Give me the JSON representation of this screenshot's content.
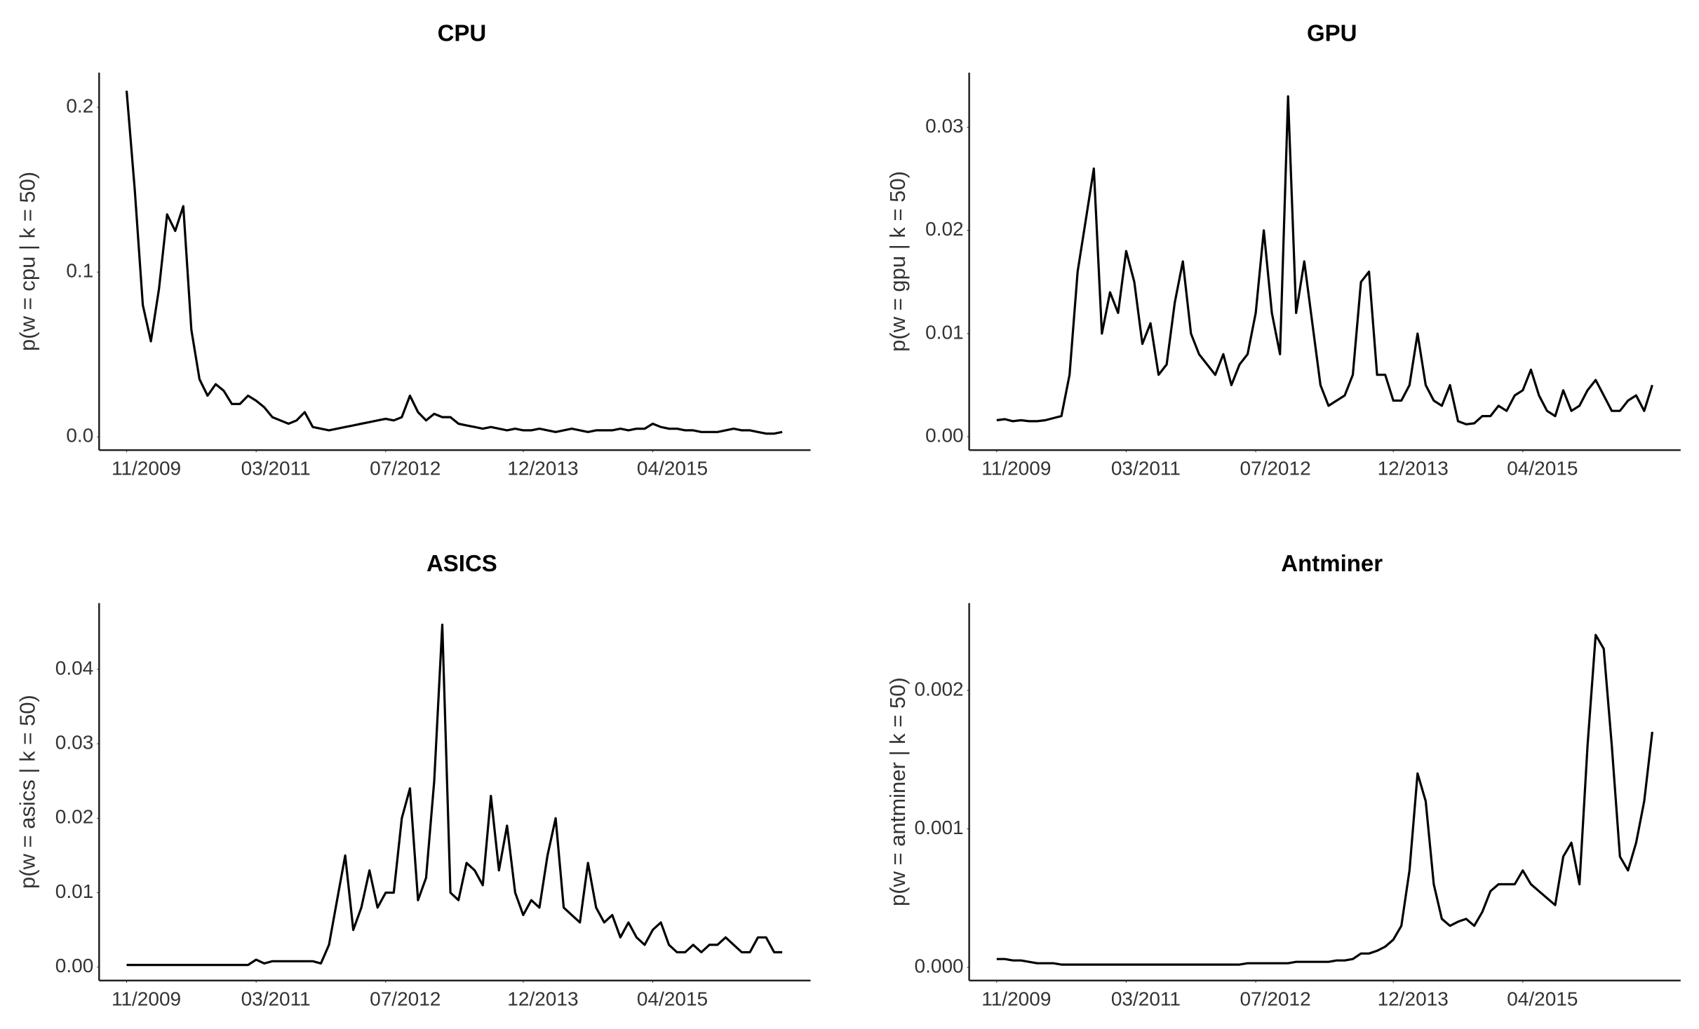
{
  "chart_data": [
    {
      "type": "line",
      "title": "CPU",
      "y_label": "p(w = cpu | k = 50)",
      "color": "#000000",
      "grid": false,
      "x": [
        "11/2009",
        "12/2009",
        "01/2010",
        "02/2010",
        "03/2010",
        "04/2010",
        "05/2010",
        "06/2010",
        "07/2010",
        "08/2010",
        "09/2010",
        "10/2010",
        "11/2010",
        "12/2010",
        "01/2011",
        "02/2011",
        "03/2011",
        "04/2011",
        "05/2011",
        "06/2011",
        "07/2011",
        "08/2011",
        "09/2011",
        "10/2011",
        "11/2011",
        "12/2011",
        "01/2012",
        "02/2012",
        "03/2012",
        "04/2012",
        "05/2012",
        "06/2012",
        "07/2012",
        "08/2012",
        "09/2012",
        "10/2012",
        "11/2012",
        "12/2012",
        "01/2013",
        "02/2013",
        "03/2013",
        "04/2013",
        "05/2013",
        "06/2013",
        "07/2013",
        "08/2013",
        "09/2013",
        "10/2013",
        "11/2013",
        "12/2013",
        "01/2014",
        "02/2014",
        "03/2014",
        "04/2014",
        "05/2014",
        "06/2014",
        "07/2014",
        "08/2014",
        "09/2014",
        "10/2014",
        "11/2014",
        "12/2014",
        "01/2015",
        "02/2015",
        "03/2015",
        "04/2015",
        "05/2015",
        "06/2015",
        "07/2015",
        "08/2015",
        "09/2015",
        "10/2015",
        "11/2015",
        "12/2015",
        "01/2016",
        "02/2016",
        "03/2016",
        "04/2016",
        "05/2016",
        "06/2016",
        "07/2016",
        "08/2016"
      ],
      "values": [
        0.21,
        0.15,
        0.08,
        0.058,
        0.09,
        0.135,
        0.125,
        0.14,
        0.065,
        0.035,
        0.025,
        0.032,
        0.028,
        0.02,
        0.02,
        0.025,
        0.022,
        0.018,
        0.012,
        0.01,
        0.008,
        0.01,
        0.015,
        0.006,
        0.005,
        0.004,
        0.005,
        0.006,
        0.007,
        0.008,
        0.009,
        0.01,
        0.011,
        0.01,
        0.012,
        0.025,
        0.015,
        0.01,
        0.014,
        0.012,
        0.012,
        0.008,
        0.007,
        0.006,
        0.005,
        0.006,
        0.005,
        0.004,
        0.005,
        0.004,
        0.004,
        0.005,
        0.004,
        0.003,
        0.004,
        0.005,
        0.004,
        0.003,
        0.004,
        0.004,
        0.004,
        0.005,
        0.004,
        0.005,
        0.005,
        0.008,
        0.006,
        0.005,
        0.005,
        0.004,
        0.004,
        0.003,
        0.003,
        0.003,
        0.004,
        0.005,
        0.004,
        0.004,
        0.003,
        0.002,
        0.002,
        0.003
      ],
      "xticks": [
        "11/2009",
        "03/2011",
        "07/2012",
        "12/2013",
        "04/2015"
      ],
      "ylim": [
        -0.008,
        0.221
      ],
      "yticks": [
        {
          "value": 0,
          "label": "0.0"
        },
        0.1,
        0.2
      ]
    },
    {
      "type": "line",
      "title": "GPU",
      "y_label": "p(w = gpu | k = 50)",
      "color": "#000000",
      "grid": false,
      "x": [
        "11/2009",
        "12/2009",
        "01/2010",
        "02/2010",
        "03/2010",
        "04/2010",
        "05/2010",
        "06/2010",
        "07/2010",
        "08/2010",
        "09/2010",
        "10/2010",
        "11/2010",
        "12/2010",
        "01/2011",
        "02/2011",
        "03/2011",
        "04/2011",
        "05/2011",
        "06/2011",
        "07/2011",
        "08/2011",
        "09/2011",
        "10/2011",
        "11/2011",
        "12/2011",
        "01/2012",
        "02/2012",
        "03/2012",
        "04/2012",
        "05/2012",
        "06/2012",
        "07/2012",
        "08/2012",
        "09/2012",
        "10/2012",
        "11/2012",
        "12/2012",
        "01/2013",
        "02/2013",
        "03/2013",
        "04/2013",
        "05/2013",
        "06/2013",
        "07/2013",
        "08/2013",
        "09/2013",
        "10/2013",
        "11/2013",
        "12/2013",
        "01/2014",
        "02/2014",
        "03/2014",
        "04/2014",
        "05/2014",
        "06/2014",
        "07/2014",
        "08/2014",
        "09/2014",
        "10/2014",
        "11/2014",
        "12/2014",
        "01/2015",
        "02/2015",
        "03/2015",
        "04/2015",
        "05/2015",
        "06/2015",
        "07/2015",
        "08/2015",
        "09/2015",
        "10/2015",
        "11/2015",
        "12/2015",
        "01/2016",
        "02/2016",
        "03/2016",
        "04/2016",
        "05/2016",
        "06/2016",
        "07/2016",
        "08/2016"
      ],
      "values": [
        0.0016,
        0.0017,
        0.0015,
        0.0016,
        0.0015,
        0.0015,
        0.0016,
        0.0018,
        0.002,
        0.006,
        0.016,
        0.021,
        0.026,
        0.01,
        0.014,
        0.012,
        0.018,
        0.015,
        0.009,
        0.011,
        0.006,
        0.007,
        0.013,
        0.017,
        0.01,
        0.008,
        0.007,
        0.006,
        0.008,
        0.005,
        0.007,
        0.008,
        0.012,
        0.02,
        0.012,
        0.008,
        0.033,
        0.012,
        0.017,
        0.011,
        0.005,
        0.003,
        0.0035,
        0.004,
        0.006,
        0.015,
        0.016,
        0.006,
        0.006,
        0.0035,
        0.0035,
        0.005,
        0.01,
        0.005,
        0.0035,
        0.003,
        0.005,
        0.0015,
        0.0012,
        0.0013,
        0.002,
        0.002,
        0.003,
        0.0025,
        0.004,
        0.0045,
        0.0065,
        0.004,
        0.0025,
        0.002,
        0.0045,
        0.0025,
        0.003,
        0.0045,
        0.0055,
        0.004,
        0.0025,
        0.0025,
        0.0035,
        0.004,
        0.0025,
        0.005
      ],
      "xticks": [
        "11/2009",
        "03/2011",
        "07/2012",
        "12/2013",
        "04/2015"
      ],
      "ylim": [
        -0.0013,
        0.0353
      ],
      "yticks": [
        {
          "value": 0,
          "label": "0.00"
        },
        0.01,
        0.02,
        0.03
      ]
    },
    {
      "type": "line",
      "title": "ASICS",
      "y_label": "p(w = asics | k = 50)",
      "color": "#000000",
      "grid": false,
      "x": [
        "11/2009",
        "12/2009",
        "01/2010",
        "02/2010",
        "03/2010",
        "04/2010",
        "05/2010",
        "06/2010",
        "07/2010",
        "08/2010",
        "09/2010",
        "10/2010",
        "11/2010",
        "12/2010",
        "01/2011",
        "02/2011",
        "03/2011",
        "04/2011",
        "05/2011",
        "06/2011",
        "07/2011",
        "08/2011",
        "09/2011",
        "10/2011",
        "11/2011",
        "12/2011",
        "01/2012",
        "02/2012",
        "03/2012",
        "04/2012",
        "05/2012",
        "06/2012",
        "07/2012",
        "08/2012",
        "09/2012",
        "10/2012",
        "11/2012",
        "12/2012",
        "01/2013",
        "02/2013",
        "03/2013",
        "04/2013",
        "05/2013",
        "06/2013",
        "07/2013",
        "08/2013",
        "09/2013",
        "10/2013",
        "11/2013",
        "12/2013",
        "01/2014",
        "02/2014",
        "03/2014",
        "04/2014",
        "05/2014",
        "06/2014",
        "07/2014",
        "08/2014",
        "09/2014",
        "10/2014",
        "11/2014",
        "12/2014",
        "01/2015",
        "02/2015",
        "03/2015",
        "04/2015",
        "05/2015",
        "06/2015",
        "07/2015",
        "08/2015",
        "09/2015",
        "10/2015",
        "11/2015",
        "12/2015",
        "01/2016",
        "02/2016",
        "03/2016",
        "04/2016",
        "05/2016",
        "06/2016",
        "07/2016",
        "08/2016"
      ],
      "values": [
        0.0003,
        0.0003,
        0.0003,
        0.0003,
        0.0003,
        0.0003,
        0.0003,
        0.0003,
        0.0003,
        0.0003,
        0.0003,
        0.0003,
        0.0003,
        0.0003,
        0.0003,
        0.0003,
        0.001,
        0.0005,
        0.0008,
        0.0008,
        0.0008,
        0.0008,
        0.0008,
        0.0008,
        0.0005,
        0.003,
        0.009,
        0.015,
        0.005,
        0.008,
        0.013,
        0.008,
        0.01,
        0.01,
        0.02,
        0.024,
        0.009,
        0.012,
        0.025,
        0.046,
        0.01,
        0.009,
        0.014,
        0.013,
        0.011,
        0.023,
        0.013,
        0.019,
        0.01,
        0.007,
        0.009,
        0.008,
        0.015,
        0.02,
        0.008,
        0.007,
        0.006,
        0.014,
        0.008,
        0.006,
        0.007,
        0.004,
        0.006,
        0.004,
        0.003,
        0.005,
        0.006,
        0.003,
        0.002,
        0.002,
        0.003,
        0.002,
        0.003,
        0.003,
        0.004,
        0.003,
        0.002,
        0.002,
        0.004,
        0.004,
        0.002,
        0.002
      ],
      "xticks": [
        "11/2009",
        "03/2011",
        "07/2012",
        "12/2013",
        "04/2015"
      ],
      "ylim": [
        -0.0018,
        0.0489
      ],
      "yticks": [
        {
          "value": 0,
          "label": "0.00"
        },
        0.01,
        0.02,
        0.03,
        0.04
      ]
    },
    {
      "type": "line",
      "title": "Antminer",
      "y_label": "p(w = antminer | k = 50)",
      "color": "#000000",
      "grid": false,
      "x": [
        "11/2009",
        "12/2009",
        "01/2010",
        "02/2010",
        "03/2010",
        "04/2010",
        "05/2010",
        "06/2010",
        "07/2010",
        "08/2010",
        "09/2010",
        "10/2010",
        "11/2010",
        "12/2010",
        "01/2011",
        "02/2011",
        "03/2011",
        "04/2011",
        "05/2011",
        "06/2011",
        "07/2011",
        "08/2011",
        "09/2011",
        "10/2011",
        "11/2011",
        "12/2011",
        "01/2012",
        "02/2012",
        "03/2012",
        "04/2012",
        "05/2012",
        "06/2012",
        "07/2012",
        "08/2012",
        "09/2012",
        "10/2012",
        "11/2012",
        "12/2012",
        "01/2013",
        "02/2013",
        "03/2013",
        "04/2013",
        "05/2013",
        "06/2013",
        "07/2013",
        "08/2013",
        "09/2013",
        "10/2013",
        "11/2013",
        "12/2013",
        "01/2014",
        "02/2014",
        "03/2014",
        "04/2014",
        "05/2014",
        "06/2014",
        "07/2014",
        "08/2014",
        "09/2014",
        "10/2014",
        "11/2014",
        "12/2014",
        "01/2015",
        "02/2015",
        "03/2015",
        "04/2015",
        "05/2015",
        "06/2015",
        "07/2015",
        "08/2015",
        "09/2015",
        "10/2015",
        "11/2015",
        "12/2015",
        "01/2016",
        "02/2016",
        "03/2016",
        "04/2016",
        "05/2016",
        "06/2016",
        "07/2016",
        "08/2016"
      ],
      "values": [
        6e-05,
        6e-05,
        5e-05,
        5e-05,
        4e-05,
        3e-05,
        3e-05,
        3e-05,
        2e-05,
        2e-05,
        2e-05,
        2e-05,
        2e-05,
        2e-05,
        2e-05,
        2e-05,
        2e-05,
        2e-05,
        2e-05,
        2e-05,
        2e-05,
        2e-05,
        2e-05,
        2e-05,
        2e-05,
        2e-05,
        2e-05,
        2e-05,
        2e-05,
        2e-05,
        2e-05,
        3e-05,
        3e-05,
        3e-05,
        3e-05,
        3e-05,
        3e-05,
        4e-05,
        4e-05,
        4e-05,
        4e-05,
        4e-05,
        5e-05,
        5e-05,
        6e-05,
        0.0001,
        0.0001,
        0.00012,
        0.00015,
        0.0002,
        0.0003,
        0.0007,
        0.0014,
        0.0012,
        0.0006,
        0.00035,
        0.0003,
        0.00033,
        0.00035,
        0.0003,
        0.0004,
        0.00055,
        0.0006,
        0.0006,
        0.0006,
        0.0007,
        0.0006,
        0.00055,
        0.0005,
        0.00045,
        0.0008,
        0.0009,
        0.0006,
        0.0016,
        0.0024,
        0.0023,
        0.0016,
        0.0008,
        0.0007,
        0.0009,
        0.0012,
        0.0017
      ],
      "xticks": [
        "11/2009",
        "03/2011",
        "07/2012",
        "12/2013",
        "04/2015"
      ],
      "ylim": [
        -9.5e-05,
        0.00263
      ],
      "yticks": [
        {
          "value": 0,
          "label": "0.000"
        },
        0.001,
        0.002
      ]
    }
  ]
}
